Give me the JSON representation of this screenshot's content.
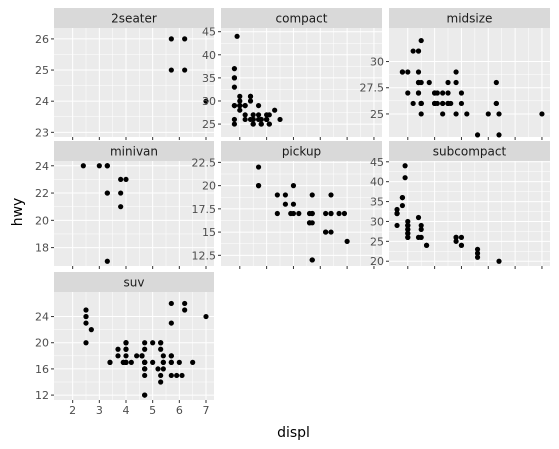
{
  "chart_data": {
    "type": "scatter",
    "xlabel": "displ",
    "ylabel": "hwy",
    "panel_bg": "#ebebeb",
    "strip_bg": "#d9d9d9",
    "grid_color": "#ffffff",
    "point_color": "#000000",
    "facets": [
      {
        "name": "2seater",
        "xlim": [
          1.3,
          7.3
        ],
        "ylim": [
          22.85,
          26.35
        ],
        "xticks": [
          2,
          3,
          4,
          5,
          6,
          7
        ],
        "xtick_labels": [],
        "yticks": [
          23,
          24,
          25,
          26
        ],
        "ytick_labels": [
          "23",
          "24",
          "25",
          "26"
        ],
        "points": [
          [
            5.7,
            26
          ],
          [
            5.7,
            25
          ],
          [
            6.2,
            26
          ],
          [
            6.2,
            25
          ],
          [
            7.0,
            24
          ]
        ]
      },
      {
        "name": "compact",
        "xlim": [
          1.3,
          7.3
        ],
        "ylim": [
          22.2,
          45.8
        ],
        "xticks": [
          2,
          3,
          4,
          5,
          6,
          7
        ],
        "xtick_labels": [],
        "yticks": [
          25,
          30,
          35,
          40,
          45
        ],
        "ytick_labels": [
          "25",
          "30",
          "35",
          "40",
          "45"
        ],
        "points": [
          [
            1.8,
            29
          ],
          [
            1.8,
            29
          ],
          [
            2.0,
            31
          ],
          [
            2.0,
            30
          ],
          [
            2.8,
            26
          ],
          [
            2.8,
            26
          ],
          [
            3.1,
            27
          ],
          [
            1.8,
            26
          ],
          [
            1.8,
            25
          ],
          [
            2.0,
            28
          ],
          [
            2.0,
            29
          ],
          [
            2.8,
            25
          ],
          [
            2.8,
            25
          ],
          [
            3.1,
            25
          ],
          [
            3.1,
            25
          ],
          [
            2.2,
            27
          ],
          [
            2.2,
            29
          ],
          [
            2.4,
            31
          ],
          [
            2.4,
            31
          ],
          [
            3.0,
            26
          ],
          [
            3.0,
            26
          ],
          [
            3.3,
            28
          ],
          [
            1.8,
            37
          ],
          [
            1.8,
            35
          ],
          [
            1.8,
            33
          ],
          [
            1.8,
            35
          ],
          [
            1.9,
            44
          ],
          [
            2.0,
            29
          ],
          [
            2.0,
            29
          ],
          [
            2.0,
            29
          ],
          [
            2.5,
            27
          ],
          [
            2.5,
            26
          ],
          [
            2.2,
            26
          ],
          [
            2.2,
            29
          ],
          [
            2.4,
            30
          ],
          [
            2.4,
            26
          ],
          [
            3.0,
            27
          ],
          [
            3.0,
            26
          ],
          [
            3.5,
            26
          ],
          [
            2.5,
            26
          ],
          [
            2.5,
            25
          ],
          [
            2.5,
            26
          ],
          [
            2.5,
            25
          ],
          [
            2.7,
            27
          ],
          [
            2.7,
            29
          ],
          [
            2.7,
            26
          ]
        ]
      },
      {
        "name": "midsize",
        "xlim": [
          1.3,
          7.3
        ],
        "ylim": [
          22.8,
          33.2
        ],
        "xticks": [
          2,
          3,
          4,
          5,
          6,
          7
        ],
        "xtick_labels": [],
        "yticks": [
          25.0,
          27.5,
          30.0
        ],
        "ytick_labels": [
          "25",
          "27.5",
          "30"
        ],
        "points": [
          [
            1.8,
            29
          ],
          [
            1.8,
            29
          ],
          [
            2.0,
            27
          ],
          [
            2.0,
            29
          ],
          [
            2.8,
            28
          ],
          [
            3.1,
            26
          ],
          [
            4.2,
            25
          ],
          [
            2.4,
            28
          ],
          [
            2.4,
            29
          ],
          [
            3.1,
            27
          ],
          [
            3.5,
            27
          ],
          [
            3.6,
            26
          ],
          [
            2.4,
            27
          ],
          [
            2.5,
            26
          ],
          [
            2.5,
            26
          ],
          [
            3.3,
            26
          ],
          [
            3.3,
            26
          ],
          [
            3.8,
            25
          ],
          [
            5.3,
            26
          ],
          [
            2.5,
            25
          ],
          [
            2.5,
            26
          ],
          [
            3.5,
            26
          ],
          [
            3.5,
            26
          ],
          [
            3.0,
            26
          ],
          [
            3.5,
            26
          ],
          [
            2.2,
            26
          ],
          [
            2.2,
            31
          ],
          [
            2.4,
            31
          ],
          [
            2.4,
            31
          ],
          [
            3.0,
            26
          ],
          [
            3.0,
            27
          ],
          [
            3.5,
            28
          ],
          [
            2.4,
            28
          ],
          [
            2.4,
            27
          ],
          [
            2.5,
            26
          ],
          [
            3.3,
            27
          ],
          [
            2.5,
            26
          ],
          [
            2.5,
            28
          ],
          [
            3.3,
            25
          ],
          [
            2.5,
            26
          ],
          [
            2.5,
            32
          ],
          [
            3.0,
            26
          ],
          [
            3.0,
            27
          ],
          [
            3.5,
            26
          ],
          [
            5.0,
            25
          ],
          [
            4.6,
            23
          ],
          [
            3.8,
            29
          ],
          [
            3.8,
            28
          ],
          [
            4.0,
            27
          ],
          [
            4.0,
            26
          ],
          [
            5.3,
            28
          ],
          [
            5.3,
            26
          ],
          [
            5.4,
            25
          ],
          [
            5.4,
            23
          ],
          [
            7.0,
            25
          ]
        ]
      },
      {
        "name": "minivan",
        "xlim": [
          1.3,
          7.3
        ],
        "ylim": [
          16.65,
          24.35
        ],
        "xticks": [
          2,
          3,
          4,
          5,
          6,
          7
        ],
        "xtick_labels": [],
        "yticks": [
          18,
          20,
          22,
          24
        ],
        "ytick_labels": [
          "18",
          "20",
          "22",
          "24"
        ],
        "points": [
          [
            2.4,
            24
          ],
          [
            3.0,
            24
          ],
          [
            3.3,
            22
          ],
          [
            3.3,
            22
          ],
          [
            3.3,
            24
          ],
          [
            3.3,
            24
          ],
          [
            3.3,
            17
          ],
          [
            3.8,
            22
          ],
          [
            3.8,
            21
          ],
          [
            3.8,
            23
          ],
          [
            4.0,
            23
          ]
        ]
      },
      {
        "name": "pickup",
        "xlim": [
          1.3,
          7.3
        ],
        "ylim": [
          11.35,
          22.65
        ],
        "xticks": [
          2,
          3,
          4,
          5,
          6,
          7
        ],
        "xtick_labels": [],
        "yticks": [
          12.5,
          15.0,
          17.5,
          20.0,
          22.5
        ],
        "ytick_labels": [
          "12.5",
          "15",
          "17.5",
          "20",
          "22.5"
        ],
        "points": [
          [
            2.7,
            20
          ],
          [
            2.7,
            20
          ],
          [
            2.7,
            22
          ],
          [
            3.4,
            17
          ],
          [
            3.4,
            19
          ],
          [
            3.7,
            18
          ],
          [
            3.7,
            19
          ],
          [
            3.9,
            17
          ],
          [
            4.0,
            20
          ],
          [
            4.0,
            17
          ],
          [
            4.2,
            17
          ],
          [
            4.6,
            16
          ],
          [
            4.7,
            12
          ],
          [
            4.7,
            17
          ],
          [
            4.7,
            19
          ],
          [
            5.2,
            17
          ],
          [
            5.2,
            15
          ],
          [
            5.7,
            17
          ],
          [
            5.9,
            17
          ],
          [
            4.7,
            16
          ],
          [
            4.7,
            12
          ],
          [
            4.7,
            17
          ],
          [
            5.2,
            15
          ],
          [
            5.4,
            17
          ],
          [
            5.4,
            15
          ],
          [
            4.0,
            18
          ],
          [
            4.6,
            17
          ],
          [
            4.6,
            16
          ],
          [
            5.4,
            17
          ],
          [
            5.4,
            19
          ],
          [
            6.0,
            14
          ]
        ]
      },
      {
        "name": "subcompact",
        "xlim": [
          1.3,
          7.3
        ],
        "ylim": [
          18.8,
          45.2
        ],
        "xticks": [
          2,
          3,
          4,
          5,
          6,
          7
        ],
        "xtick_labels": [],
        "yticks": [
          20,
          25,
          30,
          35,
          40,
          45
        ],
        "ytick_labels": [
          "20",
          "25",
          "30",
          "35",
          "40",
          "45"
        ],
        "points": [
          [
            1.6,
            33
          ],
          [
            1.6,
            32
          ],
          [
            1.6,
            32
          ],
          [
            1.6,
            29
          ],
          [
            1.6,
            32
          ],
          [
            1.8,
            34
          ],
          [
            1.8,
            36
          ],
          [
            1.8,
            36
          ],
          [
            2.0,
            29
          ],
          [
            2.0,
            26
          ],
          [
            2.0,
            27
          ],
          [
            2.0,
            30
          ],
          [
            2.4,
            31
          ],
          [
            2.4,
            26
          ],
          [
            2.5,
            26
          ],
          [
            2.5,
            28
          ],
          [
            2.0,
            26
          ],
          [
            2.0,
            29
          ],
          [
            2.0,
            28
          ],
          [
            2.0,
            27
          ],
          [
            2.7,
            24
          ],
          [
            2.7,
            24
          ],
          [
            1.9,
            44
          ],
          [
            1.9,
            41
          ],
          [
            2.0,
            28
          ],
          [
            2.0,
            29
          ],
          [
            2.5,
            29
          ],
          [
            3.8,
            26
          ],
          [
            3.8,
            25
          ],
          [
            4.0,
            26
          ],
          [
            4.0,
            24
          ],
          [
            4.6,
            21
          ],
          [
            4.6,
            22
          ],
          [
            4.6,
            23
          ],
          [
            5.4,
            20
          ],
          [
            3.8,
            26
          ],
          [
            4.0,
            24
          ]
        ]
      },
      {
        "name": "suv",
        "xlim": [
          1.3,
          7.3
        ],
        "ylim": [
          11.25,
          27.75
        ],
        "xticks": [
          2,
          3,
          4,
          5,
          6,
          7
        ],
        "xtick_labels": [
          "2",
          "3",
          "4",
          "5",
          "6",
          "7"
        ],
        "yticks": [
          12,
          16,
          20,
          24
        ],
        "ytick_labels": [
          "12",
          "16",
          "20",
          "24"
        ],
        "points": [
          [
            5.3,
            20
          ],
          [
            5.3,
            15
          ],
          [
            5.3,
            20
          ],
          [
            5.7,
            17
          ],
          [
            6.0,
            17
          ],
          [
            5.7,
            26
          ],
          [
            5.7,
            23
          ],
          [
            6.2,
            26
          ],
          [
            6.2,
            25
          ],
          [
            7.0,
            24
          ],
          [
            5.3,
            19
          ],
          [
            5.3,
            14
          ],
          [
            5.7,
            15
          ],
          [
            6.5,
            17
          ],
          [
            3.7,
            19
          ],
          [
            3.7,
            18
          ],
          [
            3.9,
            17
          ],
          [
            3.9,
            17
          ],
          [
            4.7,
            19
          ],
          [
            4.7,
            17
          ],
          [
            4.7,
            12
          ],
          [
            4.7,
            17
          ],
          [
            5.2,
            16
          ],
          [
            5.7,
            18
          ],
          [
            5.9,
            15
          ],
          [
            4.7,
            16
          ],
          [
            4.7,
            12
          ],
          [
            4.7,
            17
          ],
          [
            4.0,
            17
          ],
          [
            4.0,
            17
          ],
          [
            4.0,
            19
          ],
          [
            4.0,
            18
          ],
          [
            4.6,
            18
          ],
          [
            5.0,
            17
          ],
          [
            4.2,
            17
          ],
          [
            4.4,
            18
          ],
          [
            4.6,
            18
          ],
          [
            5.4,
            17
          ],
          [
            5.4,
            18
          ],
          [
            4.7,
            16
          ],
          [
            4.7,
            17
          ],
          [
            5.7,
            17
          ],
          [
            6.1,
            15
          ],
          [
            4.0,
            20
          ],
          [
            4.7,
            17
          ],
          [
            5.4,
            16
          ],
          [
            5.4,
            17
          ],
          [
            3.4,
            17
          ],
          [
            3.4,
            17
          ],
          [
            4.0,
            20
          ],
          [
            4.0,
            19
          ],
          [
            4.6,
            18
          ],
          [
            5.0,
            20
          ],
          [
            2.5,
            23
          ],
          [
            2.5,
            20
          ],
          [
            2.5,
            25
          ],
          [
            2.5,
            24
          ],
          [
            2.5,
            24
          ],
          [
            2.7,
            22
          ],
          [
            4.0,
            20
          ],
          [
            4.0,
            17
          ],
          [
            4.7,
            16
          ],
          [
            4.7,
            20
          ],
          [
            4.7,
            15
          ],
          [
            5.7,
            18
          ]
        ]
      }
    ]
  }
}
